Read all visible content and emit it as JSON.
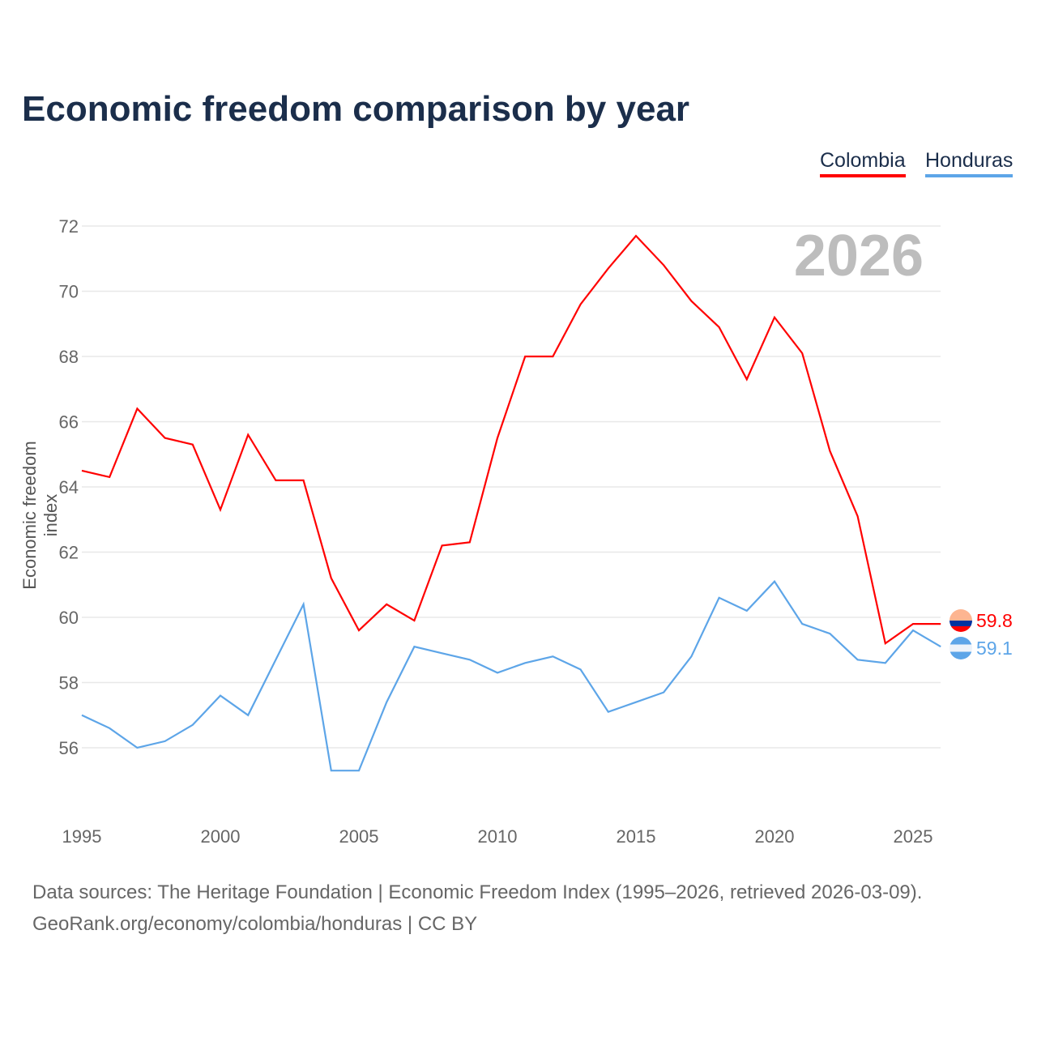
{
  "chart_data": {
    "type": "line",
    "title": "Economic freedom comparison by year",
    "ylabel": "Economic freedom index",
    "xlabel": "",
    "year_label": "2026",
    "x": [
      1995,
      1996,
      1997,
      1998,
      1999,
      2000,
      2001,
      2002,
      2003,
      2004,
      2005,
      2006,
      2007,
      2008,
      2009,
      2010,
      2011,
      2012,
      2013,
      2014,
      2015,
      2016,
      2017,
      2018,
      2019,
      2020,
      2021,
      2022,
      2023,
      2024,
      2025,
      2026
    ],
    "xticks": [
      "1995",
      "2000",
      "2005",
      "2010",
      "2015",
      "2020",
      "2025"
    ],
    "yticks": [
      "56",
      "58",
      "60",
      "62",
      "64",
      "66",
      "68",
      "70",
      "72"
    ],
    "ylim": [
      54,
      73
    ],
    "xlim": [
      1995,
      2026
    ],
    "grid": true,
    "legend_position": "top-right",
    "series": [
      {
        "name": "Colombia",
        "color": "#ff0000",
        "end_label": "59.8",
        "values": [
          64.5,
          64.3,
          66.4,
          65.5,
          65.3,
          63.3,
          65.6,
          64.2,
          64.2,
          61.2,
          59.6,
          60.4,
          59.9,
          62.2,
          62.3,
          65.5,
          68.0,
          68.0,
          69.6,
          70.7,
          71.7,
          70.8,
          69.7,
          68.9,
          67.3,
          69.2,
          68.1,
          65.1,
          63.1,
          59.2,
          59.8,
          59.8
        ]
      },
      {
        "name": "Honduras",
        "color": "#5da5e8",
        "end_label": "59.1",
        "values": [
          57.0,
          56.6,
          56.0,
          56.2,
          56.7,
          57.6,
          57.0,
          58.7,
          60.4,
          55.3,
          55.3,
          57.4,
          59.1,
          58.9,
          58.7,
          58.3,
          58.6,
          58.8,
          58.4,
          57.1,
          57.4,
          57.7,
          58.8,
          60.6,
          60.2,
          61.1,
          59.8,
          59.5,
          58.7,
          58.6,
          59.6,
          59.1
        ]
      }
    ]
  },
  "footer": {
    "sources": "Data sources: The Heritage Foundation | Economic Freedom Index (1995–2026, retrieved 2026-03-09).",
    "credit": "GeoRank.org/economy/colombia/honduras | CC BY"
  }
}
